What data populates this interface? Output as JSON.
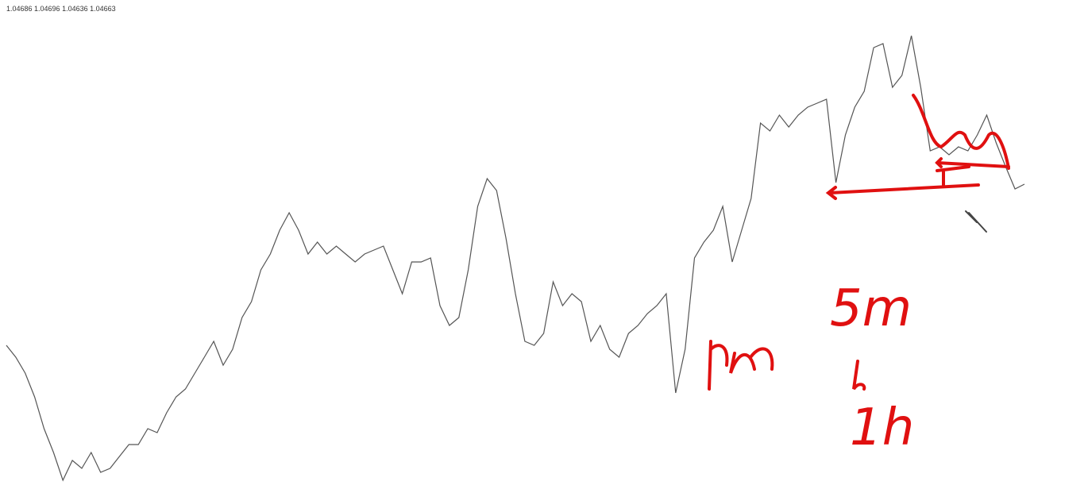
{
  "chart_data": {
    "type": "line",
    "ohlc_label": "1.04686 1.04696 1.04636 1.04663",
    "color": "#555555",
    "values": [
      181,
      166,
      146,
      116,
      76,
      46,
      11,
      36,
      26,
      46,
      21,
      26,
      41,
      56,
      56,
      76,
      71,
      96,
      116,
      126,
      146,
      166,
      186,
      156,
      176,
      216,
      236,
      276,
      296,
      326,
      348,
      326,
      296,
      311,
      296,
      306,
      296,
      286,
      296,
      301,
      306,
      276,
      246,
      286,
      286,
      291,
      231,
      206,
      216,
      276,
      356,
      391,
      376,
      316,
      246,
      186,
      181,
      196,
      261,
      231,
      246,
      236,
      186,
      206,
      176,
      166,
      196,
      206,
      221,
      231,
      246,
      121,
      176,
      291,
      311,
      326,
      356,
      286,
      326,
      366,
      461,
      451,
      471,
      456,
      471,
      481,
      486,
      491,
      386,
      446,
      481,
      501,
      556,
      561,
      506,
      521,
      571,
      506,
      426,
      431,
      421,
      431,
      426,
      446,
      471,
      436,
      406,
      378,
      384
    ],
    "annotations": [
      "5m",
      "1h"
    ],
    "annotation_color": "#e01010"
  }
}
